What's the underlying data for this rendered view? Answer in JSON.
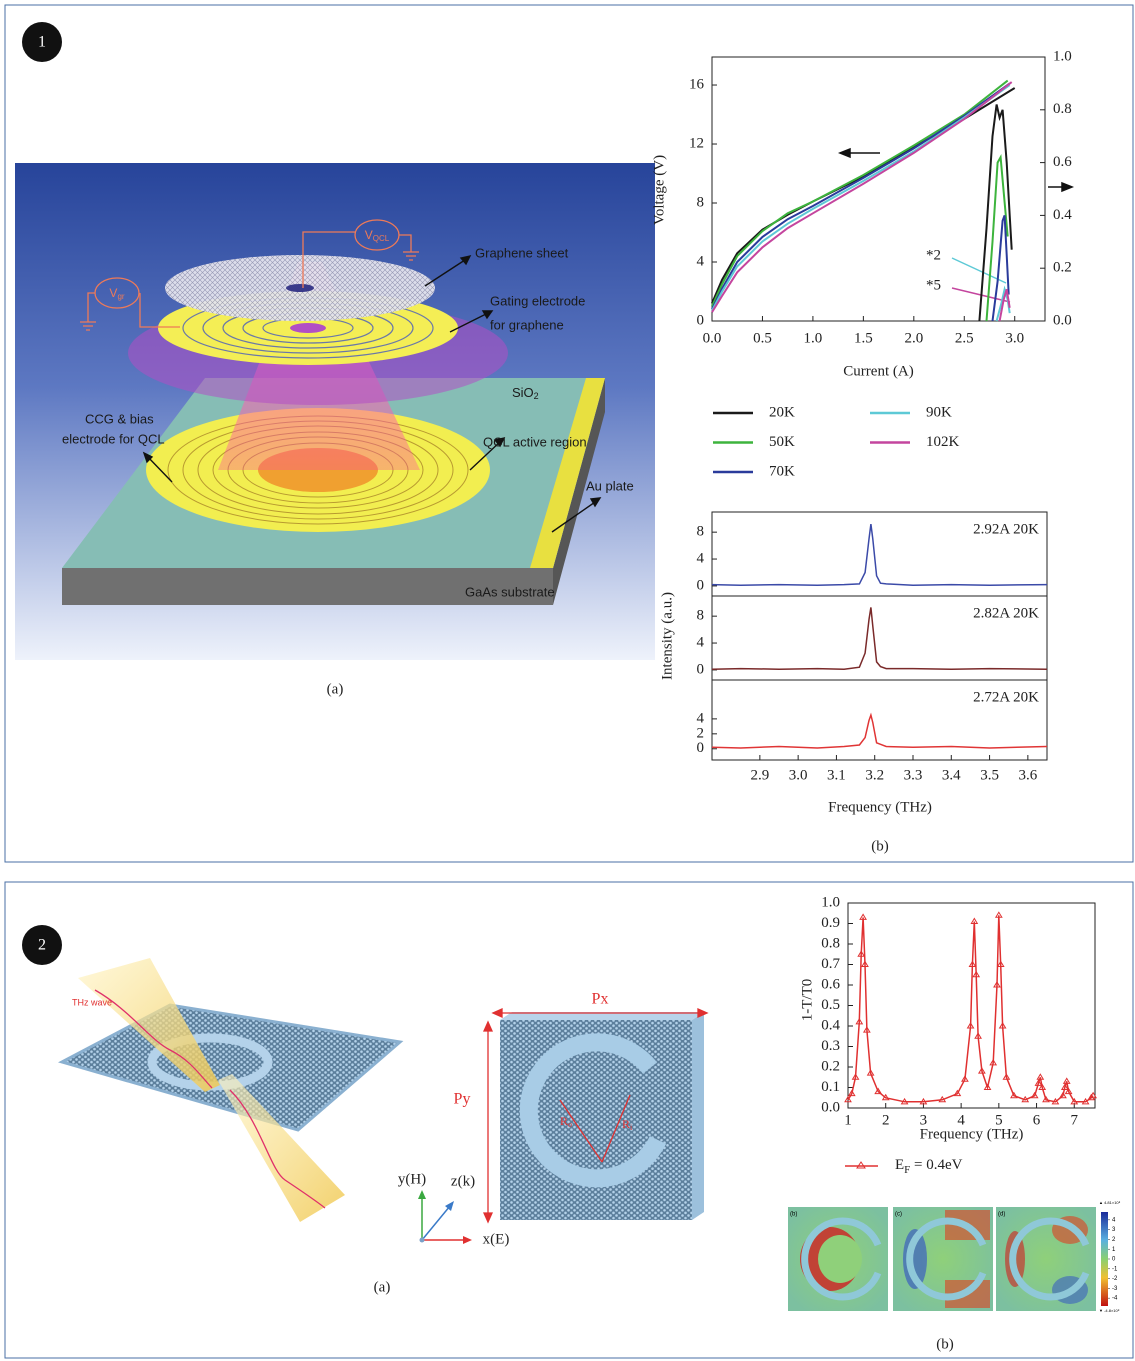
{
  "panel1": {
    "badge": "1",
    "illustration": {
      "v_qcl": {
        "main": "V",
        "sub": "QCL"
      },
      "v_gr": {
        "main": "V",
        "sub": "gr"
      },
      "graphene_sheet": "Graphene sheet",
      "gating_electrode": [
        "Gating electrode",
        "for graphene"
      ],
      "sio2": {
        "main": "SiO",
        "sub": "2"
      },
      "ccg": [
        "CCG & bias",
        "electrode for QCL"
      ],
      "qcl_active": "QCL active region",
      "au_plate": "Au plate",
      "gaas": "GaAs substrate",
      "caption": "(a)"
    },
    "iv_chart": {
      "type": "line",
      "x_label": "Current (A)",
      "y_label": "Voltage (V)",
      "xlim": [
        0,
        3.3
      ],
      "xticks": [
        {
          "value": 0,
          "label": "0.0"
        },
        0.5,
        {
          "value": 1,
          "label": "1.0"
        },
        1.5,
        {
          "value": 2,
          "label": "2.0"
        },
        2.5,
        {
          "value": 3,
          "label": "3.0"
        }
      ],
      "ylim": [
        0,
        17.9
      ],
      "yticks": [
        0,
        4,
        8,
        12,
        16
      ],
      "y2lim": [
        0,
        1.0
      ],
      "y2ticks": [
        {
          "value": 0,
          "label": "0.0"
        },
        0.2,
        0.4,
        0.6,
        0.8,
        {
          "value": 1,
          "label": "1.0"
        }
      ],
      "annotations": [
        "*2",
        "*5"
      ],
      "series": [
        {
          "name": "20K",
          "color": "#1a1a1a",
          "x": [
            0,
            0.1,
            0.25,
            0.5,
            0.75,
            1.0,
            1.5,
            2.0,
            2.5,
            3.0
          ],
          "values": [
            1.2,
            2.8,
            4.6,
            6.2,
            7.2,
            8.1,
            9.8,
            11.8,
            13.7,
            15.8
          ],
          "power_x": [
            2.65,
            2.72,
            2.78,
            2.82,
            2.85,
            2.88,
            2.92,
            2.95,
            2.97
          ],
          "power_values": [
            0,
            0.35,
            0.7,
            0.82,
            0.77,
            0.8,
            0.6,
            0.4,
            0.27
          ]
        },
        {
          "name": "50K",
          "color": "#3db43d",
          "x": [
            0,
            0.1,
            0.25,
            0.5,
            0.75,
            1.0,
            1.5,
            2.0,
            2.5,
            2.93
          ],
          "values": [
            1.0,
            2.5,
            4.4,
            6.1,
            7.3,
            8.1,
            9.9,
            11.9,
            14.0,
            16.3
          ],
          "power_x": [
            2.72,
            2.78,
            2.83,
            2.86,
            2.9,
            2.93
          ],
          "power_values": [
            0,
            0.3,
            0.6,
            0.62,
            0.45,
            0.32
          ]
        },
        {
          "name": "70K",
          "color": "#2a3b9b",
          "x": [
            0,
            0.1,
            0.25,
            0.5,
            0.75,
            1.0,
            1.5,
            2.0,
            2.5,
            2.95
          ],
          "values": [
            0.8,
            2.2,
            4.0,
            5.7,
            6.9,
            7.8,
            9.7,
            11.7,
            13.9,
            16.1
          ],
          "power_x": [
            2.78,
            2.83,
            2.88,
            2.9,
            2.92,
            2.94
          ],
          "power_values": [
            0,
            0.15,
            0.38,
            0.4,
            0.25,
            0.1
          ]
        },
        {
          "name": "90K",
          "color": "#5dc9d6",
          "x": [
            0,
            0.1,
            0.25,
            0.5,
            0.75,
            1.0,
            1.5,
            2.0,
            2.5,
            2.95
          ],
          "values": [
            0.7,
            2.0,
            3.7,
            5.4,
            6.6,
            7.6,
            9.5,
            11.5,
            13.8,
            16.0
          ],
          "power_x": [
            2.82,
            2.87,
            2.9,
            2.93,
            2.95
          ],
          "power_values": [
            0,
            0.07,
            0.12,
            0.08,
            0.03
          ]
        },
        {
          "name": "102K",
          "color": "#c4459e",
          "x": [
            0,
            0.1,
            0.25,
            0.5,
            0.75,
            1.0,
            1.5,
            2.0,
            2.5,
            2.97
          ],
          "values": [
            0.6,
            1.7,
            3.3,
            5.0,
            6.3,
            7.3,
            9.3,
            11.4,
            13.7,
            16.2
          ],
          "power_x": [
            2.85,
            2.89,
            2.92,
            2.95
          ],
          "power_values": [
            0,
            0.08,
            0.12,
            0.05
          ]
        }
      ]
    },
    "spectra": {
      "type": "line",
      "x_label": "Frequency (THz)",
      "y_label": "Intensity (a.u.)",
      "xlim": [
        2.775,
        3.65
      ],
      "xticks": [
        2.9,
        {
          "value": 3,
          "label": "3.0"
        },
        3.1,
        3.2,
        3.3,
        3.4,
        3.5,
        3.6
      ],
      "x": [
        2.775,
        2.85,
        2.95,
        3.05,
        3.12,
        3.16,
        3.175,
        3.185,
        3.19,
        3.195,
        3.205,
        3.215,
        3.23,
        3.3,
        3.4,
        3.5,
        3.65
      ],
      "subplots": [
        {
          "label": "2.92A 20K",
          "color": "#3b4aa8",
          "ylim": [
            -1.5,
            11
          ],
          "yticks": [
            0,
            4,
            8
          ],
          "values": [
            0.2,
            0.1,
            0.2,
            0.1,
            0.2,
            0.3,
            2,
            7,
            9.2,
            7,
            1.5,
            0.4,
            0.3,
            0.1,
            0.2,
            0.1,
            0.2
          ]
        },
        {
          "label": "2.82A 20K",
          "color": "#7a2a2a",
          "ylim": [
            -1.5,
            11
          ],
          "yticks": [
            0,
            4,
            8
          ],
          "values": [
            0.1,
            0.2,
            0.1,
            0.2,
            0.1,
            0.4,
            2.5,
            7.5,
            9.3,
            6.5,
            1.2,
            0.5,
            0.2,
            0.2,
            0.1,
            0.2,
            0.1
          ]
        },
        {
          "label": "2.72A 20K",
          "color": "#e03535",
          "ylim": [
            -1.5,
            9.2
          ],
          "yticks": [
            0,
            2,
            4
          ],
          "values": [
            0.2,
            0.1,
            0.3,
            0.1,
            0.3,
            0.5,
            1.5,
            3.8,
            4.5,
            3.5,
            0.8,
            0.6,
            0.3,
            0.2,
            0.3,
            0.1,
            0.3
          ]
        }
      ]
    },
    "caption": "(b)"
  },
  "panel2": {
    "badge": "2",
    "illustration": {
      "thz_wave": "THz wave",
      "px": "Px",
      "py": "Py",
      "r_outer": {
        "main": "R",
        "sub": "o"
      },
      "r_inner": {
        "main": "R",
        "sub": "i"
      },
      "axis_y": "y(H)",
      "axis_z": "z(k)",
      "axis_x": "x(E)",
      "caption": "(a)"
    },
    "transmission_chart": {
      "type": "line",
      "x_label": "Frequency (THz)",
      "y_label": "1-T/T0",
      "xlim": [
        1,
        7.55
      ],
      "xticks": [
        1,
        2,
        3,
        4,
        5,
        6,
        7
      ],
      "ylim": [
        0,
        1.0
      ],
      "yticks": [
        {
          "value": 0,
          "label": "0.0"
        },
        0.1,
        0.2,
        0.3,
        0.4,
        0.5,
        0.6,
        0.7,
        0.8,
        0.9,
        {
          "value": 1,
          "label": "1.0"
        }
      ],
      "legend": {
        "main": "E",
        "sub": "F",
        "rest": " = 0.4eV"
      },
      "series": [
        {
          "color": "#e03030",
          "x": [
            1.0,
            1.1,
            1.2,
            1.3,
            1.35,
            1.4,
            1.45,
            1.5,
            1.6,
            1.8,
            2.0,
            2.5,
            3.0,
            3.5,
            3.9,
            4.1,
            4.25,
            4.3,
            4.35,
            4.4,
            4.45,
            4.55,
            4.7,
            4.85,
            4.95,
            5.0,
            5.05,
            5.1,
            5.2,
            5.4,
            5.7,
            5.95,
            6.05,
            6.1,
            6.15,
            6.25,
            6.5,
            6.7,
            6.75,
            6.8,
            6.85,
            7.0,
            7.3,
            7.45,
            7.5
          ],
          "values": [
            0.04,
            0.07,
            0.15,
            0.42,
            0.75,
            0.93,
            0.7,
            0.38,
            0.17,
            0.08,
            0.05,
            0.03,
            0.03,
            0.04,
            0.07,
            0.14,
            0.4,
            0.7,
            0.91,
            0.65,
            0.35,
            0.18,
            0.1,
            0.22,
            0.6,
            0.94,
            0.7,
            0.4,
            0.15,
            0.06,
            0.04,
            0.06,
            0.12,
            0.15,
            0.1,
            0.04,
            0.03,
            0.06,
            0.1,
            0.13,
            0.08,
            0.03,
            0.03,
            0.05,
            0.06
          ]
        }
      ]
    },
    "field_maps": {
      "panels": [
        "(b)",
        "(c)",
        "(d)"
      ],
      "colorbar": {
        "lim": [
          -4.8,
          4.8
        ],
        "ticks": [
          4,
          3,
          2,
          1,
          0,
          -1,
          -2,
          -3,
          -4
        ],
        "max_label": "▲ 4.81×10⁸",
        "min_label": "▼ -4.8×10⁸"
      }
    },
    "caption": "(b)"
  }
}
